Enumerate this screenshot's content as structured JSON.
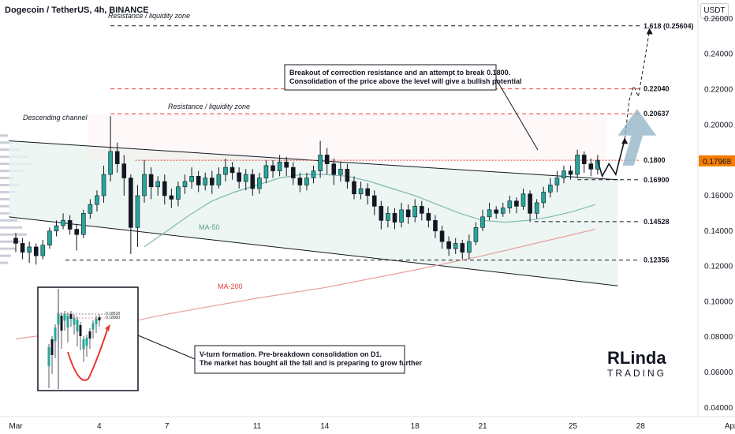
{
  "header": {
    "title": "Dogecoin / TetherUS, 4h, BINANCE",
    "currency": "USDT"
  },
  "chart_data": {
    "type": "candlestick",
    "y_axis": {
      "range": [
        0.035,
        0.268
      ],
      "ticks": [
        "0.26000",
        "0.24000",
        "0.22000",
        "0.20000",
        "0.18000",
        "0.16000",
        "0.14000",
        "0.12000",
        "0.10000",
        "0.08000",
        "0.06000",
        "0.04000"
      ]
    },
    "x_axis": {
      "ticks": [
        {
          "label": "Mar",
          "day": 0.3
        },
        {
          "label": "4",
          "day": 4
        },
        {
          "label": "7",
          "day": 7
        },
        {
          "label": "11",
          "day": 11
        },
        {
          "label": "14",
          "day": 14
        },
        {
          "label": "18",
          "day": 18
        },
        {
          "label": "21",
          "day": 21
        },
        {
          "label": "25",
          "day": 25
        },
        {
          "label": "28",
          "day": 28
        },
        {
          "label": "Apr",
          "day": 32
        }
      ]
    },
    "current_price": "0.17968",
    "levels": [
      {
        "value": 0.25604,
        "label": "1.618 (0.25604)",
        "color": "#131722",
        "style": "dashed"
      },
      {
        "value": 0.2204,
        "label": "0.22040",
        "color": "#e53935",
        "style": "dashed"
      },
      {
        "value": 0.20637,
        "label": "0.20637",
        "color": "#e53935",
        "style": "dashed"
      },
      {
        "value": 0.18,
        "label": "0.1800",
        "color": "#e53935",
        "style": "dotted"
      },
      {
        "value": 0.169,
        "label": "0.16900",
        "color": "#131722",
        "style": "dashed"
      },
      {
        "value": 0.14528,
        "label": "0.14528",
        "color": "#131722",
        "style": "dashed"
      },
      {
        "value": 0.12356,
        "label": "0.12356",
        "color": "#131722",
        "style": "dashed"
      }
    ],
    "zones": [
      {
        "label": "Resistance / liquidity zone",
        "value": 0.25604
      },
      {
        "label": "Resistance / liquidity zone",
        "value": 0.20637
      }
    ],
    "channel_label": "Descending channel",
    "ma50_label": "MA-50",
    "ma200_label": "MA-200",
    "callouts": [
      {
        "lines": [
          "Breakout of correction resistance and an attempt to break 0.1800.",
          "Consolidation of the price above the level will give a bullish potential"
        ]
      },
      {
        "lines": [
          "V-turn formation. Pre-breakdown consolidation on D1.",
          "The market has bought all the fall and is preparing to grow further"
        ]
      }
    ],
    "inset": {
      "levels": [
        "0.18518",
        "0.18000"
      ]
    },
    "candles": [
      [
        0.3,
        0.136,
        0.133,
        0.139,
        0.128
      ],
      [
        0.6,
        0.133,
        0.128,
        0.136,
        0.124
      ],
      [
        0.9,
        0.128,
        0.131,
        0.134,
        0.122
      ],
      [
        1.2,
        0.131,
        0.126,
        0.133,
        0.121
      ],
      [
        1.5,
        0.126,
        0.132,
        0.135,
        0.124
      ],
      [
        1.8,
        0.132,
        0.14,
        0.142,
        0.13
      ],
      [
        2.1,
        0.14,
        0.143,
        0.146,
        0.137
      ],
      [
        2.4,
        0.143,
        0.146,
        0.15,
        0.141
      ],
      [
        2.7,
        0.146,
        0.141,
        0.149,
        0.138
      ],
      [
        3.0,
        0.141,
        0.138,
        0.144,
        0.129
      ],
      [
        3.3,
        0.138,
        0.15,
        0.152,
        0.136
      ],
      [
        3.6,
        0.15,
        0.155,
        0.158,
        0.147
      ],
      [
        3.9,
        0.155,
        0.16,
        0.163,
        0.151
      ],
      [
        4.2,
        0.16,
        0.172,
        0.177,
        0.156
      ],
      [
        4.5,
        0.172,
        0.185,
        0.205,
        0.168
      ],
      [
        4.8,
        0.185,
        0.178,
        0.19,
        0.173
      ],
      [
        5.1,
        0.178,
        0.17,
        0.183,
        0.16
      ],
      [
        5.4,
        0.17,
        0.142,
        0.172,
        0.127
      ],
      [
        5.7,
        0.142,
        0.16,
        0.166,
        0.131
      ],
      [
        6.0,
        0.16,
        0.172,
        0.18,
        0.156
      ],
      [
        6.3,
        0.172,
        0.165,
        0.176,
        0.158
      ],
      [
        6.6,
        0.165,
        0.168,
        0.171,
        0.16
      ],
      [
        6.9,
        0.168,
        0.16,
        0.172,
        0.155
      ],
      [
        7.2,
        0.16,
        0.158,
        0.164,
        0.153
      ],
      [
        7.5,
        0.158,
        0.165,
        0.168,
        0.154
      ],
      [
        7.8,
        0.165,
        0.168,
        0.172,
        0.161
      ],
      [
        8.1,
        0.168,
        0.171,
        0.176,
        0.164
      ],
      [
        8.4,
        0.171,
        0.166,
        0.174,
        0.162
      ],
      [
        8.7,
        0.166,
        0.17,
        0.173,
        0.163
      ],
      [
        9.0,
        0.17,
        0.166,
        0.174,
        0.161
      ],
      [
        9.3,
        0.166,
        0.172,
        0.176,
        0.164
      ],
      [
        9.6,
        0.172,
        0.176,
        0.181,
        0.168
      ],
      [
        9.9,
        0.176,
        0.173,
        0.179,
        0.169
      ],
      [
        10.2,
        0.173,
        0.168,
        0.176,
        0.164
      ],
      [
        10.5,
        0.168,
        0.172,
        0.175,
        0.163
      ],
      [
        10.8,
        0.172,
        0.164,
        0.175,
        0.16
      ],
      [
        11.1,
        0.164,
        0.17,
        0.173,
        0.161
      ],
      [
        11.4,
        0.17,
        0.177,
        0.18,
        0.167
      ],
      [
        11.7,
        0.177,
        0.174,
        0.18,
        0.17
      ],
      [
        12.0,
        0.174,
        0.179,
        0.183,
        0.171
      ],
      [
        12.3,
        0.179,
        0.176,
        0.182,
        0.171
      ],
      [
        12.6,
        0.176,
        0.17,
        0.179,
        0.166
      ],
      [
        12.9,
        0.17,
        0.166,
        0.173,
        0.162
      ],
      [
        13.2,
        0.166,
        0.17,
        0.173,
        0.163
      ],
      [
        13.5,
        0.17,
        0.174,
        0.177,
        0.167
      ],
      [
        13.8,
        0.174,
        0.183,
        0.191,
        0.17
      ],
      [
        14.1,
        0.183,
        0.178,
        0.187,
        0.172
      ],
      [
        14.4,
        0.178,
        0.172,
        0.181,
        0.166
      ],
      [
        14.7,
        0.172,
        0.175,
        0.179,
        0.168
      ],
      [
        15.0,
        0.175,
        0.168,
        0.178,
        0.164
      ],
      [
        15.3,
        0.168,
        0.161,
        0.171,
        0.158
      ],
      [
        15.6,
        0.161,
        0.164,
        0.168,
        0.158
      ],
      [
        15.9,
        0.164,
        0.16,
        0.167,
        0.155
      ],
      [
        16.2,
        0.16,
        0.154,
        0.163,
        0.149
      ],
      [
        16.5,
        0.154,
        0.146,
        0.157,
        0.141
      ],
      [
        16.8,
        0.146,
        0.15,
        0.154,
        0.142
      ],
      [
        17.1,
        0.15,
        0.145,
        0.153,
        0.141
      ],
      [
        17.4,
        0.145,
        0.152,
        0.156,
        0.142
      ],
      [
        17.7,
        0.152,
        0.148,
        0.155,
        0.144
      ],
      [
        18.0,
        0.148,
        0.154,
        0.158,
        0.145
      ],
      [
        18.3,
        0.154,
        0.15,
        0.157,
        0.146
      ],
      [
        18.6,
        0.15,
        0.146,
        0.153,
        0.142
      ],
      [
        18.9,
        0.146,
        0.14,
        0.149,
        0.136
      ],
      [
        19.2,
        0.14,
        0.134,
        0.143,
        0.13
      ],
      [
        19.5,
        0.134,
        0.13,
        0.137,
        0.126
      ],
      [
        19.8,
        0.13,
        0.133,
        0.136,
        0.127
      ],
      [
        20.1,
        0.133,
        0.128,
        0.135,
        0.124
      ],
      [
        20.4,
        0.128,
        0.134,
        0.138,
        0.124
      ],
      [
        20.7,
        0.134,
        0.142,
        0.145,
        0.132
      ],
      [
        21.0,
        0.142,
        0.148,
        0.152,
        0.14
      ],
      [
        21.3,
        0.148,
        0.152,
        0.156,
        0.146
      ],
      [
        21.6,
        0.152,
        0.15,
        0.154,
        0.147
      ],
      [
        21.9,
        0.15,
        0.153,
        0.156,
        0.148
      ],
      [
        22.2,
        0.153,
        0.157,
        0.16,
        0.15
      ],
      [
        22.5,
        0.157,
        0.154,
        0.159,
        0.15
      ],
      [
        22.8,
        0.154,
        0.161,
        0.164,
        0.152
      ],
      [
        23.1,
        0.161,
        0.15,
        0.163,
        0.145
      ],
      [
        23.4,
        0.15,
        0.156,
        0.158,
        0.147
      ],
      [
        23.7,
        0.156,
        0.162,
        0.165,
        0.153
      ],
      [
        24.0,
        0.162,
        0.166,
        0.17,
        0.159
      ],
      [
        24.3,
        0.166,
        0.17,
        0.174,
        0.162
      ],
      [
        24.6,
        0.17,
        0.174,
        0.177,
        0.167
      ],
      [
        24.9,
        0.174,
        0.172,
        0.177,
        0.169
      ],
      [
        25.2,
        0.172,
        0.183,
        0.186,
        0.17
      ],
      [
        25.5,
        0.183,
        0.178,
        0.185,
        0.173
      ],
      [
        25.8,
        0.178,
        0.175,
        0.181,
        0.171
      ],
      [
        26.1,
        0.175,
        0.18,
        0.183,
        0.172
      ]
    ],
    "ma50": [
      [
        6,
        0.131
      ],
      [
        7,
        0.14
      ],
      [
        8,
        0.149
      ],
      [
        9,
        0.157
      ],
      [
        10,
        0.162
      ],
      [
        11,
        0.166
      ],
      [
        12,
        0.17
      ],
      [
        13,
        0.172
      ],
      [
        14,
        0.172
      ],
      [
        15,
        0.171
      ],
      [
        16,
        0.168
      ],
      [
        17,
        0.164
      ],
      [
        18,
        0.16
      ],
      [
        19,
        0.155
      ],
      [
        20,
        0.15
      ],
      [
        21,
        0.146
      ],
      [
        22,
        0.145
      ],
      [
        23,
        0.146
      ],
      [
        24,
        0.148
      ],
      [
        25,
        0.151
      ],
      [
        26,
        0.155
      ]
    ],
    "ma200": [
      [
        0.3,
        0.079
      ],
      [
        4,
        0.085
      ],
      [
        7,
        0.093
      ],
      [
        11,
        0.102
      ],
      [
        14,
        0.108
      ],
      [
        18,
        0.118
      ],
      [
        21,
        0.126
      ],
      [
        24,
        0.135
      ],
      [
        26,
        0.141
      ]
    ],
    "channel": {
      "upper": [
        [
          0,
          0.191
        ],
        [
          27,
          0.169
        ]
      ],
      "lower": [
        [
          0,
          0.148
        ],
        [
          27,
          0.109
        ]
      ]
    },
    "projection": [
      [
        26.1,
        0.18
      ],
      [
        26.3,
        0.171
      ],
      [
        26.6,
        0.178
      ],
      [
        26.9,
        0.172
      ],
      [
        27.3,
        0.192
      ],
      [
        27.5,
        0.214
      ],
      [
        27.7,
        0.222
      ],
      [
        27.9,
        0.216
      ],
      [
        28.2,
        0.238
      ],
      [
        28.4,
        0.254
      ]
    ]
  }
}
